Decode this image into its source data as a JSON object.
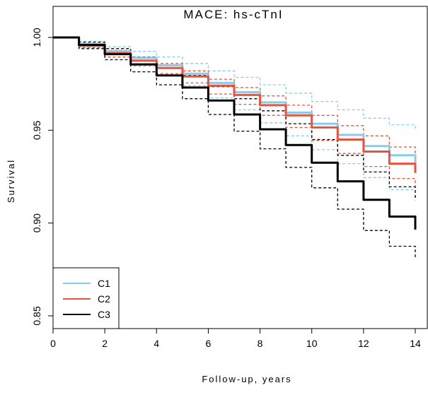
{
  "chart_data": {
    "type": "line",
    "title": "MACE: hs-cTnI",
    "xlabel": "Follow-up, years",
    "ylabel": "Survival",
    "xlim": [
      0,
      14
    ],
    "ylim": [
      0.85,
      1.0
    ],
    "xticks": [
      "0",
      "2",
      "4",
      "6",
      "8",
      "10",
      "12",
      "14"
    ],
    "yticks": [
      "0.85",
      "0.90",
      "0.95",
      "1.00"
    ],
    "grid": false,
    "legend_position": "bottom-left",
    "series": [
      {
        "name": "C1",
        "color": "#87cde8",
        "x": [
          0,
          1,
          2,
          3,
          4,
          5,
          6,
          7,
          8,
          9,
          10,
          11,
          12,
          13,
          14
        ],
        "y": [
          1.0,
          0.9965,
          0.9925,
          0.989,
          0.985,
          0.9805,
          0.9755,
          0.9705,
          0.965,
          0.9595,
          0.9535,
          0.9475,
          0.9415,
          0.9365,
          0.9315
        ],
        "ci_lower": [
          1.0,
          0.9945,
          0.9895,
          0.9845,
          0.9795,
          0.974,
          0.9675,
          0.961,
          0.954,
          0.947,
          0.9395,
          0.932,
          0.9245,
          0.918,
          0.912
        ],
        "ci_upper": [
          1.0,
          0.998,
          0.995,
          0.9925,
          0.9895,
          0.986,
          0.982,
          0.9785,
          0.9745,
          0.97,
          0.9655,
          0.961,
          0.9565,
          0.953,
          0.9505
        ]
      },
      {
        "name": "C2",
        "color": "#e8533e",
        "x": [
          0,
          1,
          2,
          3,
          4,
          5,
          6,
          7,
          8,
          9,
          10,
          11,
          12,
          13,
          14
        ],
        "y": [
          1.0,
          0.9955,
          0.9915,
          0.9875,
          0.9835,
          0.979,
          0.974,
          0.969,
          0.9635,
          0.958,
          0.9515,
          0.945,
          0.9385,
          0.932,
          0.927
        ],
        "ci_lower": [
          1.0,
          0.9945,
          0.9895,
          0.985,
          0.9805,
          0.9755,
          0.9695,
          0.964,
          0.958,
          0.9515,
          0.9445,
          0.9375,
          0.9305,
          0.924,
          0.9185
        ],
        "ci_upper": [
          1.0,
          0.9965,
          0.993,
          0.9895,
          0.986,
          0.982,
          0.9775,
          0.973,
          0.9685,
          0.9635,
          0.958,
          0.9525,
          0.947,
          0.941,
          0.9355
        ]
      },
      {
        "name": "C3",
        "color": "#000000",
        "x": [
          0,
          1,
          2,
          3,
          4,
          5,
          6,
          7,
          8,
          9,
          10,
          11,
          12,
          13,
          14
        ],
        "y": [
          1.0,
          0.996,
          0.991,
          0.9855,
          0.9795,
          0.973,
          0.966,
          0.9585,
          0.9505,
          0.942,
          0.9325,
          0.9225,
          0.9125,
          0.9035,
          0.8965
        ],
        "ci_lower": [
          1.0,
          0.994,
          0.988,
          0.9815,
          0.9745,
          0.967,
          0.9585,
          0.9495,
          0.94,
          0.93,
          0.919,
          0.9075,
          0.896,
          0.8875,
          0.8805
        ],
        "ci_upper": [
          1.0,
          0.9975,
          0.994,
          0.9895,
          0.985,
          0.9795,
          0.9735,
          0.967,
          0.9605,
          0.9535,
          0.945,
          0.9365,
          0.9275,
          0.9195,
          0.9125
        ]
      }
    ]
  }
}
